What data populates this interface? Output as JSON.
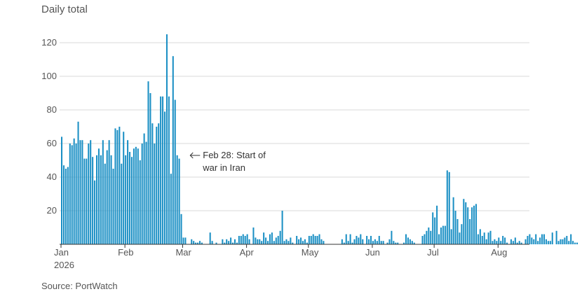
{
  "chart_data": {
    "type": "bar",
    "title": "Daily total",
    "xlabel": "",
    "ylabel": "",
    "source": "Source: PortWatch",
    "x_start": "2026-01-01",
    "ylim": [
      0,
      127
    ],
    "yticks": [
      20,
      40,
      60,
      80,
      100,
      120
    ],
    "x_ticks": [
      {
        "label": "Jan",
        "date": "2026-01-01",
        "sublabel": "2026"
      },
      {
        "label": "Feb",
        "date": "2026-02-01",
        "sublabel": ""
      },
      {
        "label": "Mar",
        "date": "2026-03-01",
        "sublabel": ""
      },
      {
        "label": "Apr",
        "date": "2026-04-01",
        "sublabel": ""
      },
      {
        "label": "May",
        "date": "2026-05-01",
        "sublabel": ""
      },
      {
        "label": "Jun",
        "date": "2026-06-01",
        "sublabel": ""
      },
      {
        "label": "Jul",
        "date": "2026-07-01",
        "sublabel": ""
      },
      {
        "label": "Aug",
        "date": "2026-08-01",
        "sublabel": ""
      }
    ],
    "grid": true,
    "bar_color": "#1a8fc4",
    "annotation": {
      "date": "2026-02-28",
      "lines": [
        "Feb 28: Start of",
        "war in Iran"
      ]
    },
    "values": [
      64,
      47,
      45,
      46,
      60,
      59,
      63,
      60,
      73,
      62,
      62,
      51,
      51,
      60,
      62,
      52,
      38,
      53,
      57,
      53,
      62,
      48,
      56,
      62,
      53,
      45,
      69,
      68,
      70,
      48,
      67,
      53,
      62,
      55,
      52,
      57,
      58,
      57,
      50,
      60,
      66,
      61,
      97,
      90,
      72,
      60,
      70,
      72,
      88,
      88,
      79,
      125,
      88,
      42,
      112,
      86,
      53,
      51,
      18,
      4,
      4,
      0,
      0,
      3,
      2,
      1,
      1,
      2,
      1,
      0,
      0,
      0,
      7,
      2,
      0,
      1,
      0,
      0,
      3,
      1,
      3,
      2,
      4,
      1,
      3,
      1,
      5,
      5,
      6,
      5,
      6,
      3,
      0,
      10,
      4,
      3,
      3,
      2,
      7,
      4,
      2,
      6,
      7,
      2,
      4,
      5,
      8,
      20,
      2,
      3,
      2,
      4,
      1,
      0,
      5,
      3,
      4,
      2,
      3,
      1,
      5,
      5,
      6,
      5,
      5,
      6,
      3,
      2,
      0,
      0,
      0,
      0,
      0,
      0,
      0,
      0,
      3,
      1,
      6,
      2,
      6,
      1,
      3,
      5,
      4,
      6,
      3,
      0,
      5,
      3,
      5,
      2,
      3,
      2,
      5,
      2,
      2,
      0,
      1,
      3,
      8,
      2,
      1,
      1,
      0,
      0,
      1,
      6,
      4,
      3,
      2,
      1,
      0,
      0,
      0,
      5,
      6,
      8,
      10,
      8,
      19,
      16,
      23,
      6,
      10,
      11,
      11,
      44,
      43,
      9,
      28,
      20,
      15,
      7,
      12,
      27,
      25,
      22,
      15,
      22,
      23,
      24,
      6,
      9,
      5,
      7,
      3,
      7,
      8,
      2,
      3,
      2,
      4,
      2,
      5,
      4,
      1,
      0,
      3,
      2,
      4,
      1,
      2,
      1,
      0,
      3,
      5,
      6,
      4,
      3,
      6,
      2,
      4,
      6,
      6,
      3,
      2,
      2,
      7,
      0,
      8,
      2,
      3,
      3,
      4,
      5,
      2,
      6,
      2,
      1,
      1
    ]
  }
}
